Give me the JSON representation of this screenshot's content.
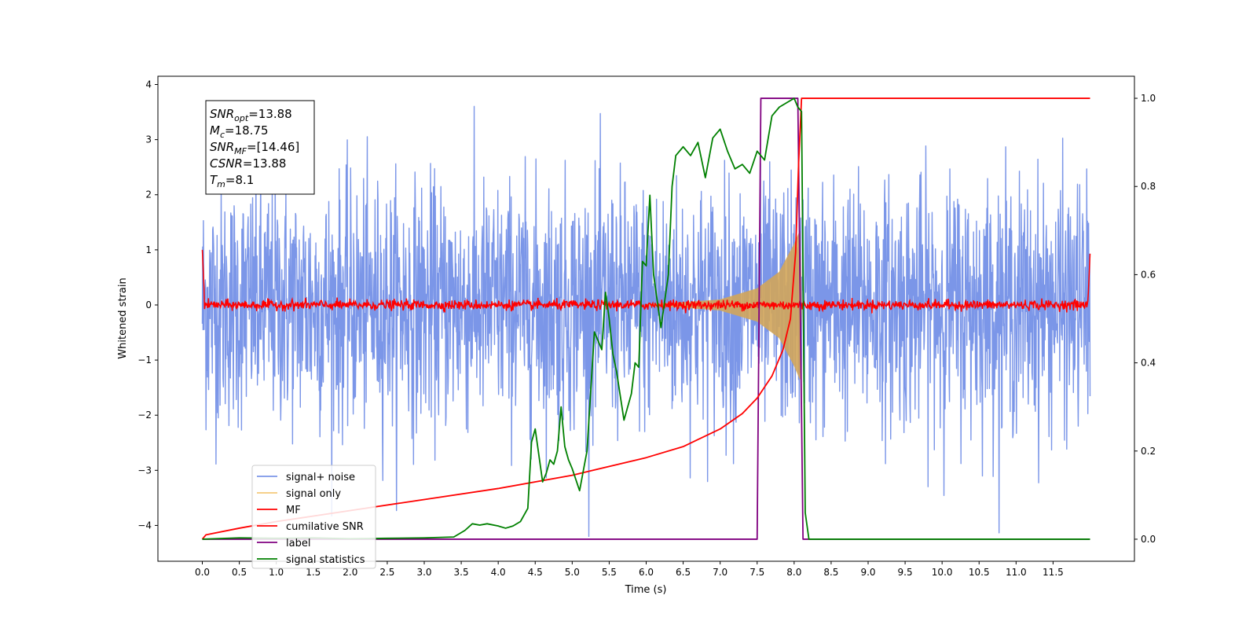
{
  "chart_data": {
    "type": "line",
    "xlabel": "Time (s)",
    "ylabel": "Whitened strain",
    "xlim": [
      -0.6,
      12.6
    ],
    "ylim": [
      -4.65,
      4.15
    ],
    "y2lim": [
      -0.05,
      1.05
    ],
    "x_ticks": [
      "0.0",
      "0.5",
      "1.0",
      "1.5",
      "2.0",
      "2.5",
      "3.0",
      "3.5",
      "4.0",
      "4.5",
      "5.0",
      "5.5",
      "6.0",
      "6.5",
      "7.0",
      "7.5",
      "8.0",
      "8.5",
      "9.0",
      "9.5",
      "10.0",
      "10.5",
      "11.0",
      "11.5"
    ],
    "y_ticks": [
      "−4",
      "−3",
      "−2",
      "−1",
      "0",
      "1",
      "2",
      "3",
      "4"
    ],
    "y2_ticks": [
      "0.0",
      "0.2",
      "0.4",
      "0.6",
      "0.8",
      "1.0"
    ],
    "annotation": {
      "lines": [
        {
          "var": "SNR",
          "sub": "opt",
          "value": "=13.88"
        },
        {
          "var": "M",
          "sub": "c",
          "value": "=18.75"
        },
        {
          "var": "SNR",
          "sub": "MF",
          "value": "=[14.46]"
        },
        {
          "var": "CSNR",
          "sub": "",
          "value": "=13.88"
        },
        {
          "var": "T",
          "sub": "m",
          "value": "=8.1"
        }
      ]
    },
    "legend": {
      "position": "lower-left",
      "entries": [
        {
          "label": "signal+ noise",
          "color": "#7b96e8"
        },
        {
          "label": "signal only",
          "color": "#f5c97a"
        },
        {
          "label": "MF",
          "color": "#ff0000"
        },
        {
          "label": "cumilative SNR",
          "color": "#ff0000"
        },
        {
          "label": "label",
          "color": "#800080"
        },
        {
          "label": "signal statistics",
          "color": "#008000"
        }
      ]
    },
    "series": [
      {
        "name": "signal+ noise",
        "axis": "left",
        "color": "#7b96e8",
        "description_values": {
          "t_start": 0.0,
          "t_end": 12.0,
          "typical_range": [
            -2.5,
            2.5
          ],
          "extremes": [
            -4.2,
            3.7
          ]
        }
      },
      {
        "name": "signal only",
        "axis": "left",
        "color": "#d2a55a",
        "envelope": [
          [
            6.0,
            0.02
          ],
          [
            6.5,
            0.05
          ],
          [
            7.0,
            0.1
          ],
          [
            7.5,
            0.3
          ],
          [
            7.8,
            0.6
          ],
          [
            8.0,
            1.1
          ],
          [
            8.08,
            1.35
          ],
          [
            8.1,
            0.0
          ]
        ]
      },
      {
        "name": "MF",
        "axis": "left",
        "color": "#ff0000",
        "description_values": {
          "t_start": 0.0,
          "t_end": 12.0,
          "baseline": 0.0,
          "noise_amplitude": 0.1,
          "edge_value": 1.0
        }
      },
      {
        "name": "cumilative SNR",
        "axis": "right",
        "color": "#ff0000",
        "x": [
          0.0,
          0.05,
          0.5,
          1.0,
          2.0,
          3.0,
          4.0,
          5.0,
          6.0,
          6.5,
          7.0,
          7.3,
          7.5,
          7.7,
          7.85,
          7.95,
          8.02,
          8.06,
          8.1,
          12.0
        ],
        "y": [
          0.0,
          0.01,
          0.025,
          0.04,
          0.065,
          0.09,
          0.115,
          0.145,
          0.185,
          0.21,
          0.25,
          0.285,
          0.32,
          0.37,
          0.43,
          0.5,
          0.65,
          0.85,
          1.0,
          1.0
        ]
      },
      {
        "name": "label",
        "axis": "right",
        "color": "#800080",
        "x": [
          0.0,
          7.5,
          7.55,
          8.05,
          8.12,
          12.0
        ],
        "y": [
          0.0,
          0.0,
          1.0,
          1.0,
          0.0,
          0.0
        ]
      },
      {
        "name": "signal statistics",
        "axis": "right",
        "color": "#008000",
        "x": [
          0.0,
          0.5,
          1.0,
          1.5,
          2.0,
          2.5,
          3.0,
          3.4,
          3.55,
          3.65,
          3.75,
          3.85,
          4.0,
          4.1,
          4.2,
          4.3,
          4.4,
          4.45,
          4.5,
          4.6,
          4.65,
          4.7,
          4.75,
          4.8,
          4.85,
          4.9,
          4.95,
          5.0,
          5.1,
          5.2,
          5.3,
          5.4,
          5.45,
          5.5,
          5.55,
          5.6,
          5.7,
          5.8,
          5.85,
          5.9,
          5.95,
          6.0,
          6.05,
          6.1,
          6.2,
          6.3,
          6.35,
          6.4,
          6.5,
          6.6,
          6.7,
          6.8,
          6.9,
          7.0,
          7.1,
          7.2,
          7.3,
          7.4,
          7.5,
          7.6,
          7.7,
          7.8,
          7.9,
          8.0,
          8.05,
          8.1,
          8.15,
          8.2,
          12.0
        ],
        "y": [
          0.0,
          0.003,
          0.002,
          0.003,
          0.001,
          0.002,
          0.003,
          0.005,
          0.02,
          0.035,
          0.032,
          0.035,
          0.03,
          0.025,
          0.03,
          0.04,
          0.07,
          0.22,
          0.25,
          0.13,
          0.15,
          0.18,
          0.17,
          0.2,
          0.3,
          0.21,
          0.18,
          0.16,
          0.11,
          0.2,
          0.47,
          0.43,
          0.56,
          0.5,
          0.42,
          0.38,
          0.27,
          0.33,
          0.4,
          0.39,
          0.63,
          0.62,
          0.78,
          0.6,
          0.48,
          0.6,
          0.8,
          0.87,
          0.89,
          0.87,
          0.9,
          0.82,
          0.91,
          0.93,
          0.88,
          0.84,
          0.85,
          0.83,
          0.88,
          0.86,
          0.96,
          0.98,
          0.99,
          1.0,
          0.98,
          0.97,
          0.06,
          0.0,
          0.0
        ]
      }
    ]
  }
}
